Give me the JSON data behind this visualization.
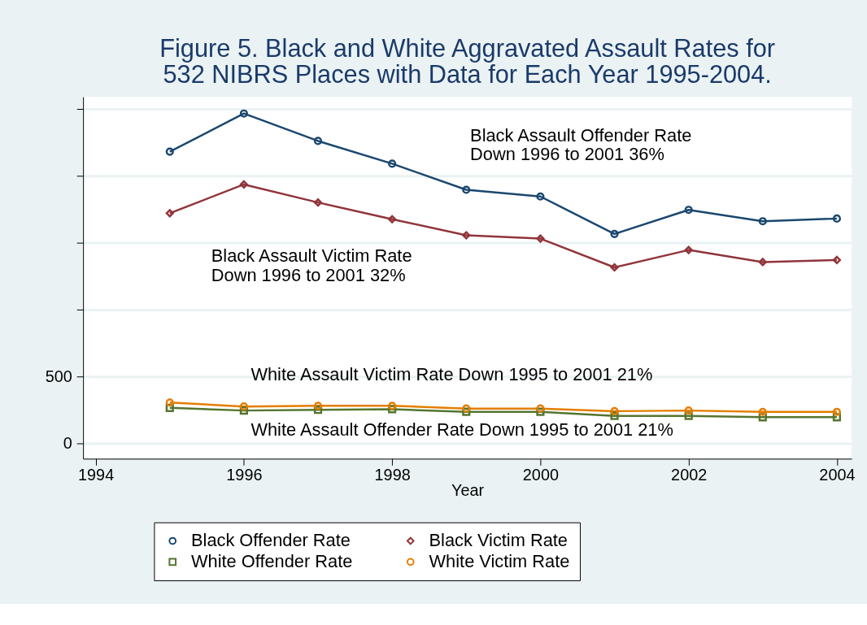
{
  "chart_data": {
    "type": "line",
    "title": [
      "Figure 5. Black and White Aggravated Assault Rates for",
      "532 NIBRS Places with Data for Each Year 1995-2004."
    ],
    "xlabel": "Year",
    "x": [
      1995,
      1996,
      1997,
      1998,
      1999,
      2000,
      2001,
      2002,
      2003,
      2004
    ],
    "series": [
      {
        "name": "Black Offender Rate",
        "color": "#1a476f",
        "marker": "circle",
        "values": [
          2180,
          2465,
          2260,
          2090,
          1895,
          1845,
          1565,
          1745,
          1660,
          1680
        ]
      },
      {
        "name": "Black Victim Rate",
        "color": "#90353b",
        "marker": "diamond",
        "values": [
          1720,
          1935,
          1800,
          1675,
          1555,
          1530,
          1315,
          1445,
          1355,
          1370
        ]
      },
      {
        "name": "White Offender Rate",
        "color": "#55752f",
        "marker": "square",
        "values": [
          265,
          245,
          250,
          255,
          235,
          235,
          205,
          205,
          195,
          195
        ]
      },
      {
        "name": "White Victim Rate",
        "color": "#e37e00",
        "marker": "circle",
        "values": [
          305,
          275,
          280,
          280,
          260,
          260,
          240,
          245,
          235,
          235
        ]
      }
    ],
    "xlim": [
      1993.83,
      2004.2
    ],
    "xticks": [
      1994,
      1996,
      1998,
      2000,
      2002,
      2004
    ],
    "ylim": [
      -115,
      2590
    ],
    "yticks": [
      0,
      500,
      {
        "value": 1000,
        "label": null
      },
      {
        "value": 1500,
        "label": null
      },
      {
        "value": 2000,
        "label": null
      },
      {
        "value": 2500,
        "label": null
      }
    ],
    "grid": "y",
    "legend": "bottom",
    "annotations": [
      "Black Assault Offender Rate\nDown 1996 to 2001  36%",
      "Black Assault Victim Rate\nDown 1996 to 2001 32%",
      "White Assault Victim Rate Down 1995 to 2001 21%",
      "White Assault Offender Rate Down 1995 to 2001 21%"
    ]
  }
}
